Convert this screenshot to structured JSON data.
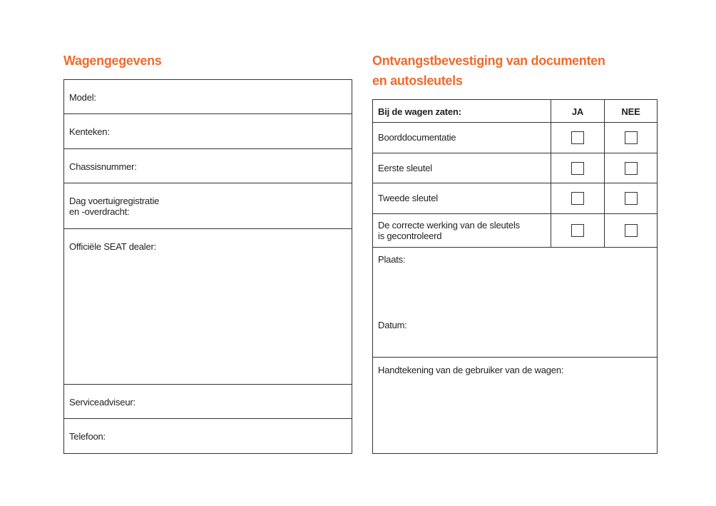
{
  "left": {
    "title": "Wagengegevens",
    "rows": [
      "Model:",
      "Kenteken:",
      "Chassisnummer:",
      "Dag voertuigregistratie\nen -overdracht:",
      "Officiële SEAT dealer:",
      "Serviceadviseur:",
      "Telefoon:"
    ]
  },
  "right": {
    "title_line1": "Ontvangstbevestiging van documenten",
    "title_line2": "en autosleutels",
    "header": {
      "item": "Bij de wagen zaten:",
      "yes": "JA",
      "no": "NEE"
    },
    "items": [
      "Boorddocumentatie",
      "Eerste sleutel",
      "Tweede sleutel",
      "De correcte werking van de sleutels\nis gecontroleerd"
    ],
    "place": "Plaats:",
    "date": "Datum:",
    "signature": "Handtekening van de gebruiker van de wagen:"
  }
}
